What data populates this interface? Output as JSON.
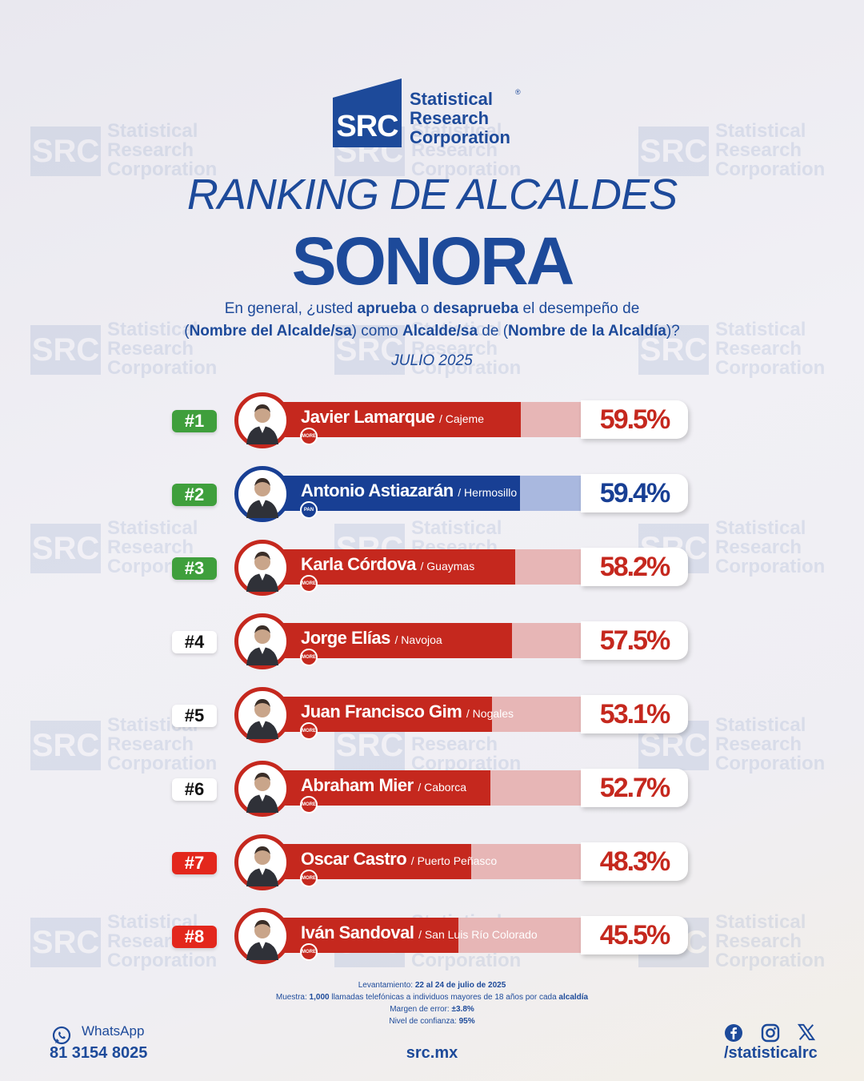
{
  "brand": {
    "mark": "SRC",
    "name_line1": "Statistical",
    "name_line2": "Research",
    "name_line3": "Corporation",
    "registered": "®"
  },
  "header": {
    "title": "RANKING DE ALCALDES",
    "subtitle": "SONORA",
    "question": {
      "p1": "En general, ¿usted ",
      "b1": "aprueba",
      "p2": " o ",
      "b2": "desaprueba",
      "p3": " el desempeño de",
      "p4": "(",
      "b3": "Nombre del Alcalde/sa",
      "p5": ") como ",
      "b4": "Alcalde/sa",
      "p6": " de (",
      "b5": "Nombre de la Alcaldía",
      "p7": ")?"
    },
    "date": "JULIO 2025"
  },
  "chart_data": {
    "type": "bar",
    "orientation": "horizontal",
    "value_unit": "%",
    "categories": [
      "Javier Lamarque",
      "Antonio Astiazarán",
      "Karla Córdova",
      "Jorge Elías",
      "Juan Francisco Gim",
      "Abraham Mier",
      "Oscar Castro",
      "Iván Sandoval"
    ],
    "values": [
      59.5,
      59.4,
      58.2,
      57.5,
      53.1,
      52.7,
      48.3,
      45.5
    ],
    "rows": [
      {
        "rank": "#1",
        "rank_color": "green",
        "name": "Javier Lamarque",
        "city": "/ Cajeme",
        "value": 59.5,
        "pct_label": "59.5%",
        "party": "MORENA",
        "color": "#c5281e",
        "track": "#e7b6b6"
      },
      {
        "rank": "#2",
        "rank_color": "green",
        "name": "Antonio Astiazarán",
        "city": "/ Hermosillo",
        "value": 59.4,
        "pct_label": "59.4%",
        "party": "PAN",
        "color": "#183f94",
        "track": "#a9b8df"
      },
      {
        "rank": "#3",
        "rank_color": "green",
        "name": "Karla Córdova",
        "city": "/ Guaymas",
        "value": 58.2,
        "pct_label": "58.2%",
        "party": "MORENA",
        "color": "#c5281e",
        "track": "#e7b6b6"
      },
      {
        "rank": "#4",
        "rank_color": "white",
        "name": "Jorge Elías",
        "city": "/ Navojoa",
        "value": 57.5,
        "pct_label": "57.5%",
        "party": "MORENA",
        "color": "#c5281e",
        "track": "#e7b6b6"
      },
      {
        "rank": "#5",
        "rank_color": "white",
        "name": "Juan Francisco Gim",
        "city": "/ Nogales",
        "value": 53.1,
        "pct_label": "53.1%",
        "party": "MORENA",
        "color": "#c5281e",
        "track": "#e7b6b6"
      },
      {
        "rank": "#6",
        "rank_color": "white",
        "name": "Abraham Mier",
        "city": "/ Caborca",
        "value": 52.7,
        "pct_label": "52.7%",
        "party": "MORENA",
        "color": "#c5281e",
        "track": "#e7b6b6"
      },
      {
        "rank": "#7",
        "rank_color": "red",
        "name": "Oscar Castro",
        "city": "/ Puerto Peñasco",
        "value": 48.3,
        "pct_label": "48.3%",
        "party": "MORENA",
        "color": "#c5281e",
        "track": "#e7b6b6"
      },
      {
        "rank": "#8",
        "rank_color": "red",
        "name": "Iván Sandoval",
        "city": "/ San Luis Río Colorado",
        "value": 45.5,
        "pct_label": "45.5%",
        "party": "MORENA",
        "color": "#c5281e",
        "track": "#e7b6b6"
      }
    ]
  },
  "methodology": {
    "survey_label": "Levantamiento: ",
    "survey_value": "22 al 24 de julio de 2025",
    "sample_label": "Muestra: ",
    "sample_n": "1,000",
    "sample_text": " llamadas telefónicas a individuos mayores de 18 años por cada ",
    "sample_unit": "alcaldía",
    "margin_label": "Margen de error: ",
    "margin_value": "±3.8%",
    "confidence_label": "Nivel de confianza: ",
    "confidence_value": "95%"
  },
  "footer": {
    "whatsapp_label": "WhatsApp",
    "phone": "81 3154 8025",
    "website": "src.mx",
    "handle": "/statisticalrc",
    "icons": [
      "whatsapp-icon",
      "facebook-icon",
      "instagram-icon",
      "x-icon"
    ]
  },
  "colors": {
    "brand_blue": "#1d4a9a",
    "red": "#c5281e",
    "green": "#3f9f3c",
    "rank_red": "#e3271c"
  }
}
